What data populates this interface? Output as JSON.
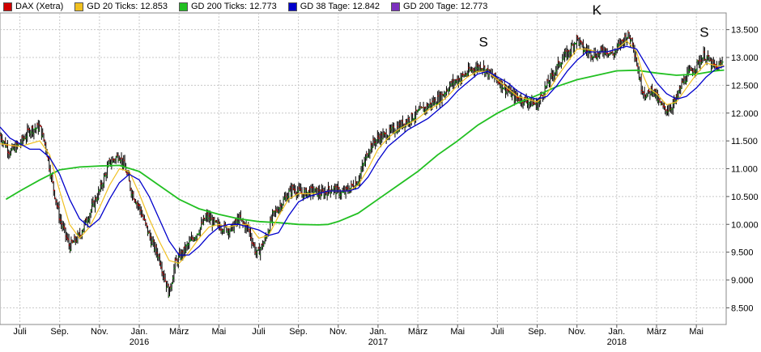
{
  "chart_data": {
    "type": "line",
    "title": "DAX (Xetra)",
    "legend": [
      {
        "label": "DAX (Xetra)",
        "color": "#d00000"
      },
      {
        "label": "GD 20 Ticks: 12.853",
        "color": "#f0c020"
      },
      {
        "label": "GD 200 Ticks: 12.773",
        "color": "#22c022"
      },
      {
        "label": "GD 38 Tage: 12.842",
        "color": "#0000cc"
      },
      {
        "label": "GD 200 Tage: 12.773",
        "color": "#7b2fbe"
      }
    ],
    "ylim": [
      8200,
      13800
    ],
    "y_ticks": [
      8500,
      9000,
      9500,
      10000,
      10500,
      11000,
      11500,
      12000,
      12500,
      13000,
      13500
    ],
    "y_tick_labels": [
      "8.500",
      "9.000",
      "9.500",
      "10.000",
      "10.500",
      "11.000",
      "11.500",
      "12.000",
      "12.500",
      "13.000",
      "13.500"
    ],
    "x_range": [
      0,
      36.5
    ],
    "x_ticks": [
      {
        "x": 1,
        "label": "Juli",
        "year": ""
      },
      {
        "x": 3,
        "label": "Sep.",
        "year": ""
      },
      {
        "x": 5,
        "label": "Nov.",
        "year": ""
      },
      {
        "x": 7,
        "label": "Jan.",
        "year": "2016"
      },
      {
        "x": 9,
        "label": "März",
        "year": ""
      },
      {
        "x": 11,
        "label": "Mai",
        "year": ""
      },
      {
        "x": 13,
        "label": "Juli",
        "year": ""
      },
      {
        "x": 15,
        "label": "Sep.",
        "year": ""
      },
      {
        "x": 17,
        "label": "Nov.",
        "year": ""
      },
      {
        "x": 19,
        "label": "Jan.",
        "year": "2017"
      },
      {
        "x": 21,
        "label": "März",
        "year": ""
      },
      {
        "x": 23,
        "label": "Mai",
        "year": ""
      },
      {
        "x": 25,
        "label": "Juli",
        "year": ""
      },
      {
        "x": 27,
        "label": "Sep.",
        "year": ""
      },
      {
        "x": 29,
        "label": "Nov.",
        "year": ""
      },
      {
        "x": 31,
        "label": "Jan.",
        "year": "2018"
      },
      {
        "x": 33,
        "label": "März",
        "year": ""
      },
      {
        "x": 35,
        "label": "Mai",
        "year": ""
      }
    ],
    "price_keypoints": [
      [
        0,
        11600
      ],
      [
        0.5,
        11300
      ],
      [
        1,
        11450
      ],
      [
        1.5,
        11700
      ],
      [
        2,
        11750
      ],
      [
        2.3,
        11400
      ],
      [
        2.6,
        10800
      ],
      [
        3,
        10100
      ],
      [
        3.5,
        9600
      ],
      [
        4,
        9800
      ],
      [
        4.5,
        10200
      ],
      [
        5,
        10600
      ],
      [
        5.5,
        11100
      ],
      [
        6,
        11250
      ],
      [
        6.3,
        11000
      ],
      [
        6.6,
        10600
      ],
      [
        7,
        10300
      ],
      [
        7.3,
        10000
      ],
      [
        7.6,
        9700
      ],
      [
        8,
        9400
      ],
      [
        8.3,
        9000
      ],
      [
        8.5,
        8750
      ],
      [
        8.8,
        9300
      ],
      [
        9.2,
        9500
      ],
      [
        9.6,
        9700
      ],
      [
        10,
        9900
      ],
      [
        10.4,
        10150
      ],
      [
        10.8,
        10000
      ],
      [
        11.2,
        9950
      ],
      [
        11.6,
        9900
      ],
      [
        12,
        10100
      ],
      [
        12.5,
        9900
      ],
      [
        12.9,
        9450
      ],
      [
        13.3,
        9700
      ],
      [
        13.7,
        10150
      ],
      [
        14.2,
        10400
      ],
      [
        14.7,
        10650
      ],
      [
        15.2,
        10550
      ],
      [
        15.7,
        10600
      ],
      [
        16.2,
        10550
      ],
      [
        16.7,
        10650
      ],
      [
        17.2,
        10550
      ],
      [
        17.6,
        10650
      ],
      [
        18,
        10800
      ],
      [
        18.3,
        11100
      ],
      [
        18.6,
        11400
      ],
      [
        19,
        11550
      ],
      [
        19.4,
        11600
      ],
      [
        19.8,
        11700
      ],
      [
        20.2,
        11800
      ],
      [
        20.6,
        11900
      ],
      [
        21,
        12000
      ],
      [
        21.4,
        12100
      ],
      [
        21.8,
        12200
      ],
      [
        22.2,
        12300
      ],
      [
        22.6,
        12500
      ],
      [
        23,
        12600
      ],
      [
        23.4,
        12700
      ],
      [
        23.8,
        12800
      ],
      [
        24.2,
        12850
      ],
      [
        24.6,
        12700
      ],
      [
        25,
        12600
      ],
      [
        25.4,
        12450
      ],
      [
        25.8,
        12300
      ],
      [
        26.2,
        12250
      ],
      [
        26.6,
        12200
      ],
      [
        27,
        12150
      ],
      [
        27.4,
        12450
      ],
      [
        27.8,
        12700
      ],
      [
        28.2,
        12950
      ],
      [
        28.6,
        13100
      ],
      [
        29,
        13350
      ],
      [
        29.3,
        13150
      ],
      [
        29.6,
        13100
      ],
      [
        30,
        13050
      ],
      [
        30.4,
        13150
      ],
      [
        30.8,
        13050
      ],
      [
        31.2,
        13250
      ],
      [
        31.5,
        13400
      ],
      [
        31.8,
        13300
      ],
      [
        32,
        12900
      ],
      [
        32.2,
        12500
      ],
      [
        32.5,
        12300
      ],
      [
        32.8,
        12450
      ],
      [
        33.1,
        12200
      ],
      [
        33.4,
        12050
      ],
      [
        33.7,
        12100
      ],
      [
        34,
        12250
      ],
      [
        34.3,
        12550
      ],
      [
        34.6,
        12700
      ],
      [
        35,
        12850
      ],
      [
        35.4,
        13050
      ],
      [
        35.7,
        12900
      ],
      [
        36,
        12800
      ],
      [
        36.3,
        12900
      ]
    ],
    "ma20_keypoints": [
      [
        0,
        11450
      ],
      [
        1,
        11400
      ],
      [
        2,
        11500
      ],
      [
        2.5,
        11250
      ],
      [
        3,
        10600
      ],
      [
        3.5,
        10000
      ],
      [
        4,
        9750
      ],
      [
        4.5,
        9950
      ],
      [
        5,
        10300
      ],
      [
        5.5,
        10700
      ],
      [
        6,
        11000
      ],
      [
        6.5,
        10950
      ],
      [
        7,
        10550
      ],
      [
        7.5,
        10100
      ],
      [
        8,
        9700
      ],
      [
        8.5,
        9350
      ],
      [
        9,
        9300
      ],
      [
        9.5,
        9500
      ],
      [
        10,
        9750
      ],
      [
        10.5,
        9950
      ],
      [
        11,
        10000
      ],
      [
        11.5,
        9950
      ],
      [
        12,
        10000
      ],
      [
        12.5,
        10000
      ],
      [
        13,
        9750
      ],
      [
        13.5,
        9800
      ],
      [
        14,
        10150
      ],
      [
        14.5,
        10450
      ],
      [
        15,
        10550
      ],
      [
        15.5,
        10550
      ],
      [
        16,
        10550
      ],
      [
        16.5,
        10600
      ],
      [
        17,
        10600
      ],
      [
        17.5,
        10600
      ],
      [
        18,
        10700
      ],
      [
        18.5,
        11000
      ],
      [
        19,
        11350
      ],
      [
        19.5,
        11550
      ],
      [
        20,
        11700
      ],
      [
        20.5,
        11800
      ],
      [
        21,
        11900
      ],
      [
        21.5,
        12050
      ],
      [
        22,
        12150
      ],
      [
        22.5,
        12300
      ],
      [
        23,
        12500
      ],
      [
        23.5,
        12650
      ],
      [
        24,
        12750
      ],
      [
        24.5,
        12750
      ],
      [
        25,
        12600
      ],
      [
        25.5,
        12450
      ],
      [
        26,
        12300
      ],
      [
        26.5,
        12250
      ],
      [
        27,
        12200
      ],
      [
        27.5,
        12350
      ],
      [
        28,
        12650
      ],
      [
        28.5,
        12900
      ],
      [
        29,
        13150
      ],
      [
        29.5,
        13150
      ],
      [
        30,
        13100
      ],
      [
        30.5,
        13100
      ],
      [
        31,
        13150
      ],
      [
        31.5,
        13300
      ],
      [
        32,
        13100
      ],
      [
        32.3,
        12700
      ],
      [
        32.6,
        12450
      ],
      [
        33,
        12350
      ],
      [
        33.5,
        12150
      ],
      [
        34,
        12200
      ],
      [
        34.5,
        12450
      ],
      [
        35,
        12700
      ],
      [
        35.5,
        12900
      ],
      [
        36,
        12850
      ],
      [
        36.4,
        12853
      ]
    ],
    "ma38_keypoints": [
      [
        0,
        11750
      ],
      [
        0.5,
        11550
      ],
      [
        1,
        11450
      ],
      [
        1.5,
        11350
      ],
      [
        2,
        11350
      ],
      [
        2.5,
        11200
      ],
      [
        3,
        10900
      ],
      [
        3.5,
        10450
      ],
      [
        4,
        10100
      ],
      [
        4.5,
        9950
      ],
      [
        5,
        10100
      ],
      [
        5.5,
        10450
      ],
      [
        6,
        10750
      ],
      [
        6.5,
        10900
      ],
      [
        7,
        10800
      ],
      [
        7.5,
        10500
      ],
      [
        8,
        10100
      ],
      [
        8.5,
        9700
      ],
      [
        9,
        9450
      ],
      [
        9.5,
        9450
      ],
      [
        10,
        9600
      ],
      [
        10.5,
        9800
      ],
      [
        11,
        9950
      ],
      [
        11.5,
        10000
      ],
      [
        12,
        10000
      ],
      [
        12.5,
        9950
      ],
      [
        13,
        9900
      ],
      [
        13.5,
        9800
      ],
      [
        14,
        9850
      ],
      [
        14.5,
        10150
      ],
      [
        15,
        10400
      ],
      [
        15.5,
        10500
      ],
      [
        16,
        10550
      ],
      [
        16.5,
        10600
      ],
      [
        17,
        10600
      ],
      [
        17.5,
        10600
      ],
      [
        18,
        10650
      ],
      [
        18.5,
        10850
      ],
      [
        19,
        11150
      ],
      [
        19.5,
        11400
      ],
      [
        20,
        11550
      ],
      [
        20.5,
        11700
      ],
      [
        21,
        11800
      ],
      [
        21.5,
        11900
      ],
      [
        22,
        12050
      ],
      [
        22.5,
        12200
      ],
      [
        23,
        12400
      ],
      [
        23.5,
        12550
      ],
      [
        24,
        12700
      ],
      [
        24.5,
        12750
      ],
      [
        25,
        12650
      ],
      [
        25.5,
        12550
      ],
      [
        26,
        12400
      ],
      [
        26.5,
        12300
      ],
      [
        27,
        12250
      ],
      [
        27.5,
        12300
      ],
      [
        28,
        12500
      ],
      [
        28.5,
        12750
      ],
      [
        29,
        12950
      ],
      [
        29.5,
        13100
      ],
      [
        30,
        13100
      ],
      [
        30.5,
        13100
      ],
      [
        31,
        13150
      ],
      [
        31.5,
        13200
      ],
      [
        32,
        13150
      ],
      [
        32.5,
        12850
      ],
      [
        33,
        12550
      ],
      [
        33.5,
        12350
      ],
      [
        34,
        12250
      ],
      [
        34.5,
        12300
      ],
      [
        35,
        12450
      ],
      [
        35.5,
        12650
      ],
      [
        36,
        12800
      ],
      [
        36.4,
        12842
      ]
    ],
    "ma200_keypoints": [
      [
        0.3,
        10450
      ],
      [
        1,
        10600
      ],
      [
        2,
        10800
      ],
      [
        3,
        10980
      ],
      [
        4,
        11030
      ],
      [
        5,
        11050
      ],
      [
        6,
        11060
      ],
      [
        7,
        10950
      ],
      [
        8,
        10700
      ],
      [
        9,
        10450
      ],
      [
        10,
        10280
      ],
      [
        11,
        10180
      ],
      [
        12,
        10100
      ],
      [
        13,
        10050
      ],
      [
        14,
        10030
      ],
      [
        15,
        10000
      ],
      [
        16,
        9990
      ],
      [
        16.5,
        10000
      ],
      [
        17,
        10050
      ],
      [
        18,
        10200
      ],
      [
        19,
        10450
      ],
      [
        20,
        10700
      ],
      [
        21,
        10950
      ],
      [
        22,
        11250
      ],
      [
        23,
        11500
      ],
      [
        24,
        11780
      ],
      [
        25,
        12000
      ],
      [
        26,
        12180
      ],
      [
        27,
        12320
      ],
      [
        28,
        12480
      ],
      [
        29,
        12600
      ],
      [
        30,
        12680
      ],
      [
        31,
        12760
      ],
      [
        32,
        12770
      ],
      [
        33,
        12720
      ],
      [
        34,
        12680
      ],
      [
        35,
        12700
      ],
      [
        36,
        12760
      ],
      [
        36.4,
        12773
      ]
    ],
    "annotations": [
      {
        "text": "S",
        "x": 24.3,
        "y": 13200
      },
      {
        "text": "K",
        "x": 30,
        "y": 13770
      },
      {
        "text": "S",
        "x": 35.4,
        "y": 13370
      }
    ]
  }
}
